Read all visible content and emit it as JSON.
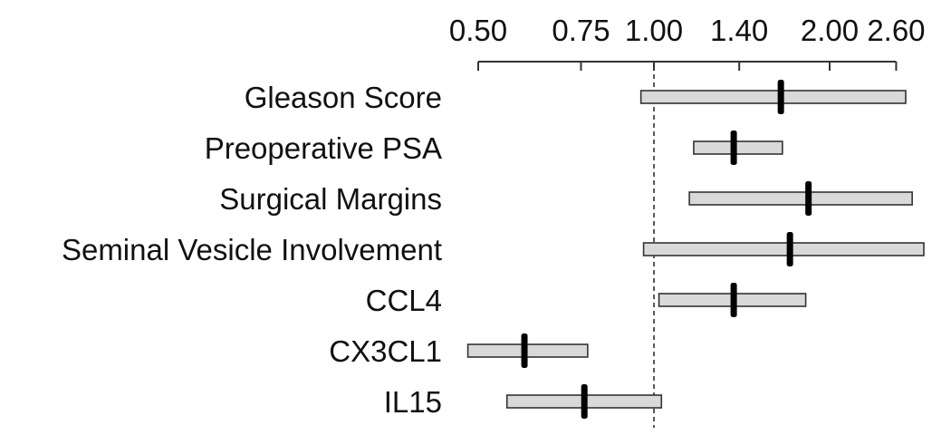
{
  "chart_data": {
    "type": "forest",
    "scale": "log",
    "xlim": [
      0.5,
      2.8
    ],
    "ticks": [
      {
        "value": 0.5,
        "label": "0.50"
      },
      {
        "value": 0.75,
        "label": "0.75"
      },
      {
        "value": 1.0,
        "label": "1.00"
      },
      {
        "value": 1.4,
        "label": "1.40"
      },
      {
        "value": 2.0,
        "label": "2.00"
      },
      {
        "value": 2.6,
        "label": "2.60"
      }
    ],
    "reference_line": 1.0,
    "rows": [
      {
        "label": "Gleason Score",
        "estimate": 1.65,
        "lower": 0.95,
        "upper": 2.7
      },
      {
        "label": "Preoperative PSA",
        "estimate": 1.37,
        "lower": 1.17,
        "upper": 1.66
      },
      {
        "label": "Surgical Margins",
        "estimate": 1.84,
        "lower": 1.15,
        "upper": 2.77
      },
      {
        "label": "Seminal Vesicle Involvement",
        "estimate": 1.71,
        "lower": 0.96,
        "upper": 2.9
      },
      {
        "label": "CCL4",
        "estimate": 1.37,
        "lower": 1.02,
        "upper": 1.82
      },
      {
        "label": "CX3CL1",
        "estimate": 0.6,
        "lower": 0.48,
        "upper": 0.77
      },
      {
        "label": "IL15",
        "estimate": 0.76,
        "lower": 0.56,
        "upper": 1.03
      }
    ],
    "colors": {
      "box_fill": "#d9d9d9",
      "box_stroke": "#333333",
      "point": "#000000",
      "reference": "#222222"
    }
  }
}
